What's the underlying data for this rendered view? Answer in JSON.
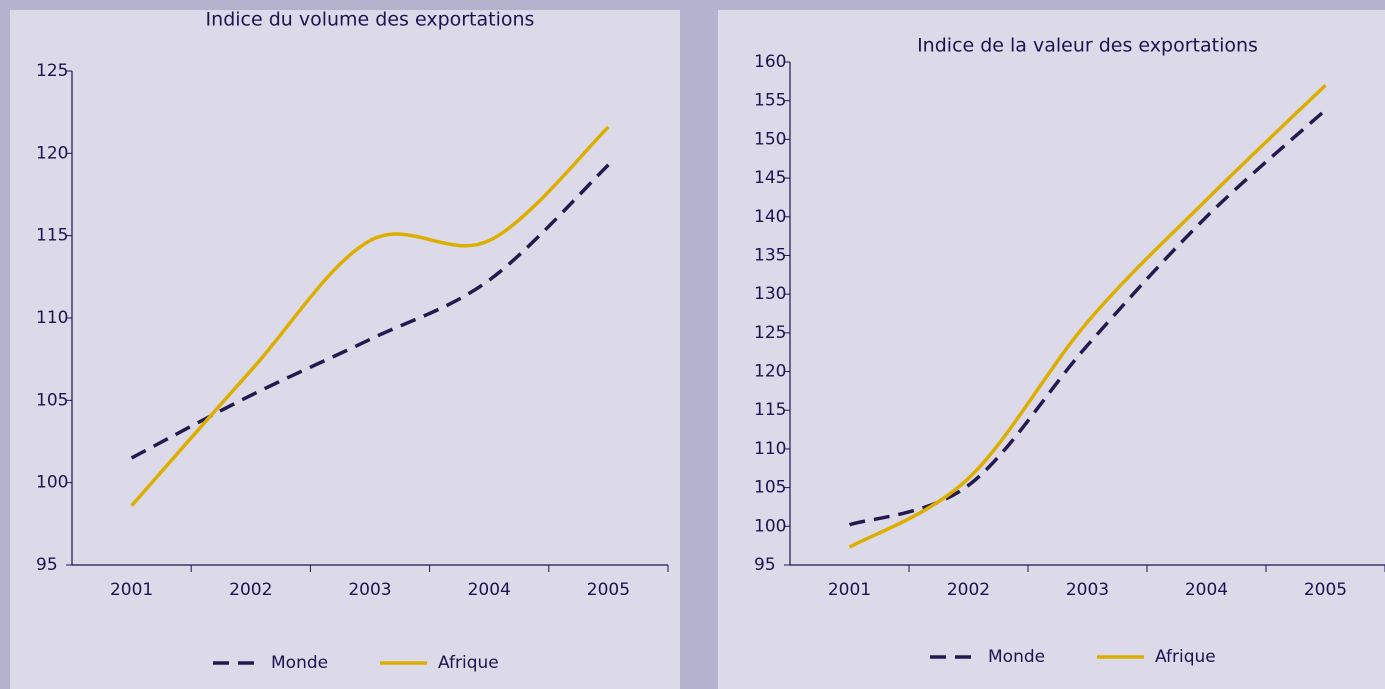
{
  "chart_data": [
    {
      "type": "line",
      "title": "Indice du volume des exportations",
      "categories": [
        "2001",
        "2002",
        "2003",
        "2004",
        "2005"
      ],
      "series": [
        {
          "name": "Monde",
          "color": "#241a50",
          "dashed": true,
          "values": [
            101.5,
            105.3,
            108.7,
            112.3,
            119.3
          ]
        },
        {
          "name": "Afrique",
          "color": "#dcae00",
          "dashed": false,
          "values": [
            98.6,
            106.8,
            114.7,
            114.7,
            121.6
          ]
        }
      ],
      "ylim": [
        95,
        125
      ],
      "yticks": [
        95,
        100,
        105,
        110,
        115,
        120,
        125
      ],
      "grid": false,
      "legend": "bottom"
    },
    {
      "type": "line",
      "title": "Indice de la valeur des exportations",
      "categories": [
        "2001",
        "2002",
        "2003",
        "2004",
        "2005"
      ],
      "series": [
        {
          "name": "Monde",
          "color": "#241a50",
          "dashed": true,
          "values": [
            100.2,
            105.3,
            123.4,
            140.0,
            153.8
          ]
        },
        {
          "name": "Afrique",
          "color": "#dcae00",
          "dashed": false,
          "values": [
            97.3,
            106.2,
            126.4,
            142.2,
            157.0
          ]
        }
      ],
      "ylim": [
        95,
        160
      ],
      "yticks": [
        95,
        100,
        105,
        110,
        115,
        120,
        125,
        130,
        135,
        140,
        145,
        150,
        155,
        160
      ],
      "grid": false,
      "legend": "bottom"
    }
  ]
}
